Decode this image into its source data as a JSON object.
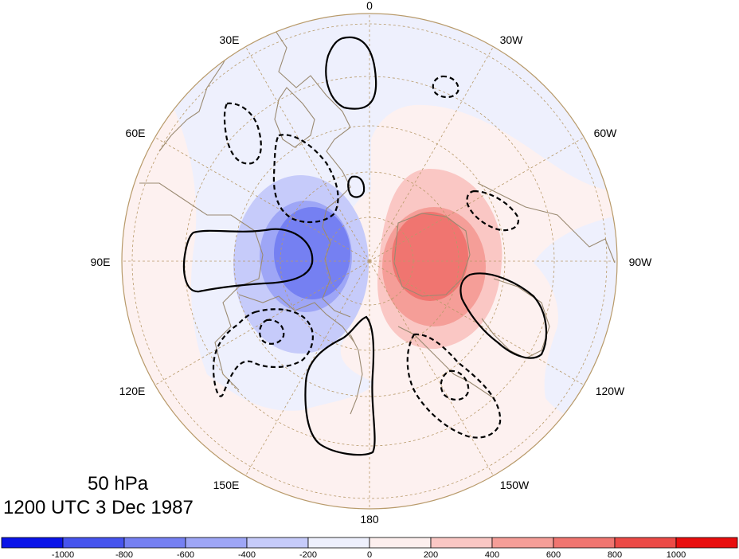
{
  "caption": {
    "level": "50 hPa",
    "time": "1200 UTC 3 Dec 1987"
  },
  "map": {
    "projection": "north-polar-stereographic",
    "longitude_labels": [
      "0",
      "30W",
      "60W",
      "90W",
      "120W",
      "150W",
      "180",
      "150E",
      "120E",
      "90E",
      "60E",
      "30E"
    ],
    "coastline_color": "#9a8a72",
    "grid_color": "#b89a6a"
  },
  "colorbar": {
    "tick_labels": [
      "-1000",
      "-800",
      "-600",
      "-400",
      "-200",
      "0",
      "200",
      "400",
      "600",
      "800",
      "1000"
    ],
    "colors": [
      "#0a14e8",
      "#4654ee",
      "#7580f2",
      "#9ea6f6",
      "#c6cbfa",
      "#eef0fd",
      "#fdefee",
      "#fac7c4",
      "#f59e98",
      "#f07570",
      "#ec4a46",
      "#e80e0e"
    ]
  }
}
